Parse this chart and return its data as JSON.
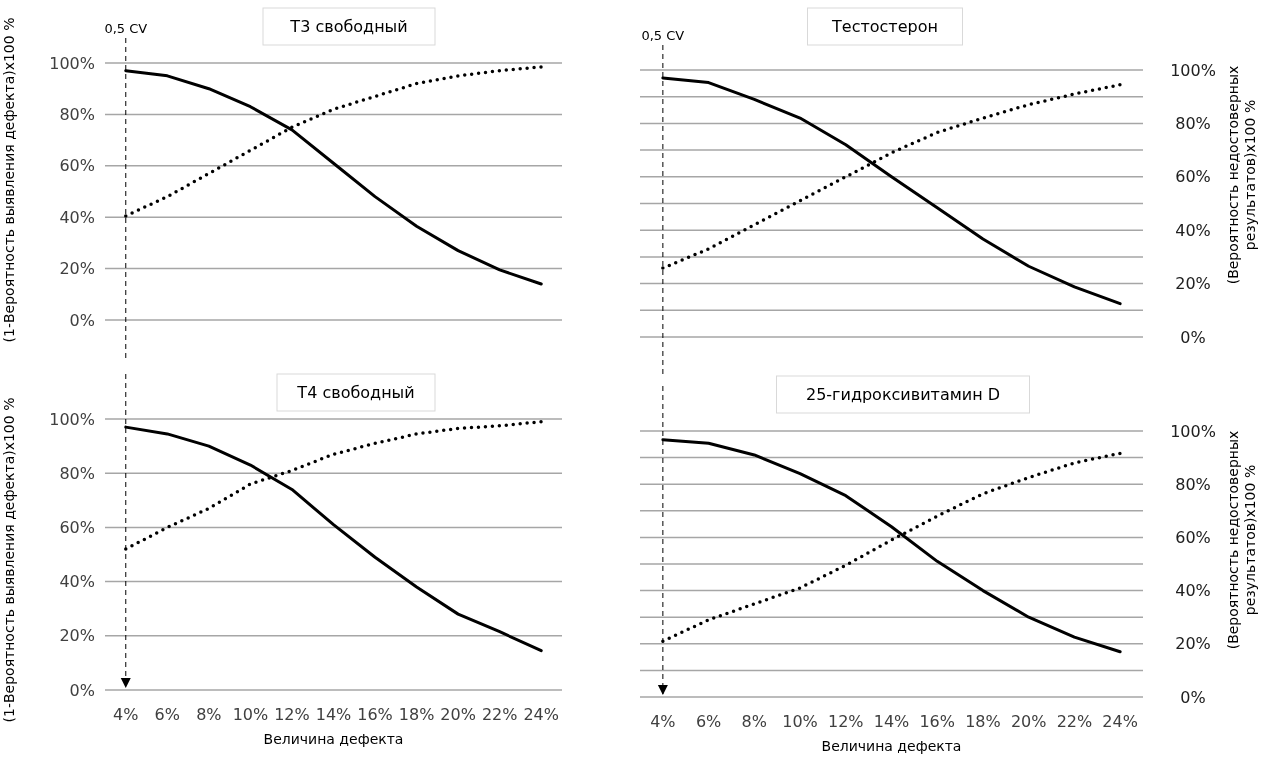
{
  "chart_data": [
    {
      "type": "line",
      "title": "T3 свободный",
      "ylabel": "(1-Вероятность выявления дефекта)x100 %",
      "x": [
        4,
        6,
        8,
        10,
        12,
        14,
        16,
        18,
        20,
        22,
        24
      ],
      "xlim": [
        3,
        25
      ],
      "ylim": [
        0,
        100
      ],
      "yticks": [
        {
          "value": 0,
          "label": "0%"
        },
        {
          "value": 20,
          "label": "20%"
        },
        {
          "value": 40,
          "label": "40%"
        },
        {
          "value": 60,
          "label": "60%"
        },
        {
          "value": 80,
          "label": "80%"
        },
        {
          "value": 100,
          "label": "100%"
        }
      ],
      "grid": "y",
      "tick_labels": "y",
      "ref_lines": [
        {
          "axis": "x",
          "value": 4,
          "label": "0,5 CV",
          "line_style": "dashed"
        }
      ],
      "series": [
        {
          "color": "#000000",
          "line_style": "solid",
          "values": [
            97,
            95,
            90,
            83,
            74,
            61,
            48,
            36.5,
            27,
            19.5,
            14
          ]
        },
        {
          "color": "#000000",
          "line_style": "dotted",
          "values": [
            40.5,
            48,
            57,
            66,
            75,
            82,
            87,
            92,
            95,
            97,
            98.5
          ]
        }
      ]
    },
    {
      "type": "line",
      "title": "Тестостерон",
      "y2label": "(Вероятность недостоверных результатов)x100 %",
      "x": [
        4,
        6,
        8,
        10,
        12,
        14,
        16,
        18,
        20,
        22,
        24
      ],
      "xlim": [
        3,
        25
      ],
      "y2lim": [
        0,
        100
      ],
      "y2ticks": [
        {
          "value": 0,
          "label": "0%"
        },
        {
          "value": 10,
          "label": null
        },
        {
          "value": 20,
          "label": "20%"
        },
        {
          "value": 30,
          "label": null
        },
        {
          "value": 40,
          "label": "40%"
        },
        {
          "value": 50,
          "label": null
        },
        {
          "value": 60,
          "label": "60%"
        },
        {
          "value": 70,
          "label": null
        },
        {
          "value": 80,
          "label": "80%"
        },
        {
          "value": 90,
          "label": null
        },
        {
          "value": 100,
          "label": "100%"
        }
      ],
      "grid": "y",
      "tick_labels": "y",
      "ref_lines": [
        {
          "axis": "x",
          "value": 4,
          "label": "0,5 CV",
          "line_style": "dashed"
        }
      ],
      "series": [
        {
          "color": "#000000",
          "line_style": "solid",
          "axis": "y2",
          "values": [
            97,
            95.3,
            89,
            82,
            72,
            60,
            48.4,
            36.7,
            26.5,
            18.8,
            12.5
          ]
        },
        {
          "color": "#000000",
          "line_style": "dotted",
          "axis": "y2",
          "values": [
            25.8,
            33,
            42,
            51,
            60,
            69,
            76.6,
            82,
            87,
            91,
            94.5
          ]
        }
      ]
    },
    {
      "type": "line",
      "title": "T4 свободный",
      "xlabel": "Величина дефекта",
      "ylabel": "(1-Вероятность выявления дефекта)x100 %",
      "x": [
        4,
        6,
        8,
        10,
        12,
        14,
        16,
        18,
        20,
        22,
        24
      ],
      "xlim": [
        3,
        25
      ],
      "xticks": [
        {
          "value": 4,
          "label": "4%"
        },
        {
          "value": 6,
          "label": "6%"
        },
        {
          "value": 8,
          "label": "8%"
        },
        {
          "value": 10,
          "label": "10%"
        },
        {
          "value": 12,
          "label": "12%"
        },
        {
          "value": 14,
          "label": "14%"
        },
        {
          "value": 16,
          "label": "16%"
        },
        {
          "value": 18,
          "label": "18%"
        },
        {
          "value": 20,
          "label": "20%"
        },
        {
          "value": 22,
          "label": "22%"
        },
        {
          "value": 24,
          "label": "24%"
        }
      ],
      "ylim": [
        0,
        100
      ],
      "yticks": [
        {
          "value": 0,
          "label": "0%"
        },
        {
          "value": 20,
          "label": "20%"
        },
        {
          "value": 40,
          "label": "40%"
        },
        {
          "value": 60,
          "label": "60%"
        },
        {
          "value": 80,
          "label": "80%"
        },
        {
          "value": 100,
          "label": "100%"
        }
      ],
      "grid": "y",
      "ref_lines": [
        {
          "axis": "x",
          "value": 4,
          "line_style": "dashed"
        }
      ],
      "series": [
        {
          "color": "#000000",
          "line_style": "solid",
          "values": [
            97,
            94.5,
            90,
            83,
            74,
            61,
            49,
            38,
            28,
            21.5,
            14.5
          ]
        },
        {
          "color": "#000000",
          "line_style": "dotted",
          "values": [
            52,
            60,
            67,
            76,
            81,
            87,
            91,
            94.5,
            96.5,
            97.5,
            99
          ]
        }
      ]
    },
    {
      "type": "line",
      "title": "25-гидроксивитамин D",
      "xlabel": "Величина дефекта",
      "y2label": "(Вероятность недостоверных результатов)x100 %",
      "x": [
        4,
        6,
        8,
        10,
        12,
        14,
        16,
        18,
        20,
        22,
        24
      ],
      "xlim": [
        3,
        25
      ],
      "xticks": [
        {
          "value": 4,
          "label": "4%"
        },
        {
          "value": 6,
          "label": "6%"
        },
        {
          "value": 8,
          "label": "8%"
        },
        {
          "value": 10,
          "label": "10%"
        },
        {
          "value": 12,
          "label": "12%"
        },
        {
          "value": 14,
          "label": "14%"
        },
        {
          "value": 16,
          "label": "16%"
        },
        {
          "value": 18,
          "label": "18%"
        },
        {
          "value": 20,
          "label": "20%"
        },
        {
          "value": 22,
          "label": "22%"
        },
        {
          "value": 24,
          "label": "24%"
        }
      ],
      "y2lim": [
        0,
        100
      ],
      "y2ticks": [
        {
          "value": 0,
          "label": "0%"
        },
        {
          "value": 10,
          "label": null
        },
        {
          "value": 20,
          "label": "20%"
        },
        {
          "value": 30,
          "label": null
        },
        {
          "value": 40,
          "label": "40%"
        },
        {
          "value": 50,
          "label": null
        },
        {
          "value": 60,
          "label": "60%"
        },
        {
          "value": 70,
          "label": null
        },
        {
          "value": 80,
          "label": "80%"
        },
        {
          "value": 90,
          "label": null
        },
        {
          "value": 100,
          "label": "100%"
        }
      ],
      "grid": "y",
      "ref_lines": [
        {
          "axis": "x",
          "value": 4,
          "line_style": "dashed"
        }
      ],
      "series": [
        {
          "color": "#000000",
          "line_style": "solid",
          "axis": "y2",
          "values": [
            96.7,
            95.4,
            91,
            84,
            75.7,
            64,
            51,
            40,
            30,
            22.5,
            17
          ]
        },
        {
          "color": "#000000",
          "line_style": "dotted",
          "axis": "y2",
          "values": [
            21,
            29,
            35,
            41,
            49.5,
            59,
            68,
            76.4,
            82.5,
            88,
            91.6
          ]
        }
      ]
    }
  ]
}
